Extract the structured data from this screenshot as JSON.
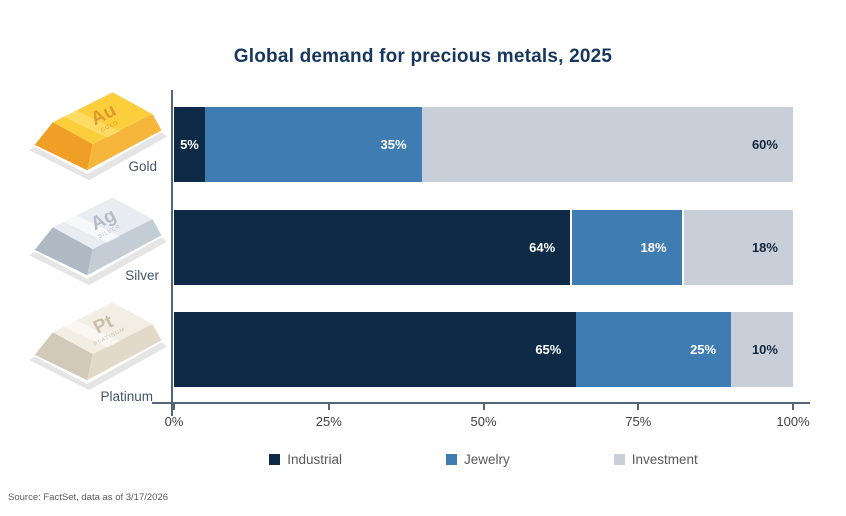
{
  "title": "Global demand for precious metals, 2025",
  "source": "Source: FactSet, data as of 3/17/2026",
  "colors": {
    "industrial": "#0E2A47",
    "jewelry": "#3E7CB1",
    "investment": "#C9CFD8",
    "title_navy": "#17375E",
    "axis": "#54667A"
  },
  "chart_data": {
    "type": "bar",
    "orientation": "horizontal",
    "stacked": true,
    "title": "Global demand for precious metals, 2025",
    "categories": [
      "Gold",
      "Silver",
      "Platinum"
    ],
    "series": [
      {
        "name": "Industrial",
        "color": "#0E2A47",
        "label_color": "#FFFFFF",
        "values": [
          5,
          64,
          65
        ]
      },
      {
        "name": "Jewelry",
        "color": "#3E7CB1",
        "label_color": "#FFFFFF",
        "values": [
          35,
          18,
          25
        ]
      },
      {
        "name": "Investment",
        "color": "#C9CFD8",
        "label_color": "#12273F",
        "values": [
          60,
          18,
          10
        ]
      }
    ],
    "x_ticks": [
      "0%",
      "25%",
      "50%",
      "75%",
      "100%"
    ],
    "xlim": [
      0,
      100
    ],
    "value_suffix": "%",
    "legend_position": "bottom",
    "grid": false
  },
  "icons": [
    {
      "metal": "Gold",
      "symbol": "Au",
      "engraving": "GOLD"
    },
    {
      "metal": "Silver",
      "symbol": "Ag",
      "engraving": "SILVER"
    },
    {
      "metal": "Platinum",
      "symbol": "Pt",
      "engraving": "PLATINUM"
    }
  ]
}
